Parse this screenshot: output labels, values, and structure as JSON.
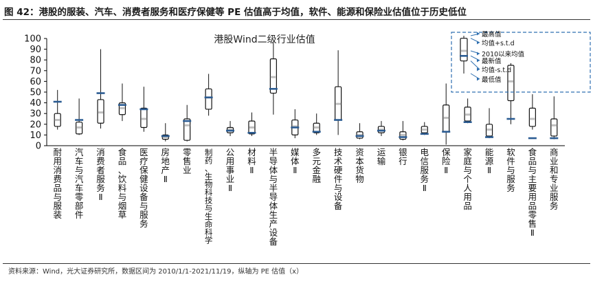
{
  "figure_title": "图 42：港股的服装、汽车、消费者服务和医疗保健等 PE 估值高于均值，软件、能源和保险业估值位于历史低位",
  "source_note": "资料来源：Wind，光大证券研究所，数据区间为 2010/1/1-2021/11/19，纵轴为 PE 估值（x）",
  "colors": {
    "box_fill": "#ffffff",
    "box_stroke": "#111111",
    "whisker": "#111111",
    "mean_marker": "#bfbfbf",
    "latest_marker": "#2a5b92",
    "legend_border": "#2e6fb0",
    "legend_arrow": "#2e6fb0",
    "median_line": "#2a5b92"
  },
  "chart_data": {
    "type": "boxplot",
    "title": "港股Wind二级行业估值",
    "ylim": [
      0,
      100
    ],
    "yticks": [
      0,
      10,
      20,
      30,
      40,
      50,
      60,
      70,
      80,
      90,
      100
    ],
    "grid": false,
    "legend_position": "top-right",
    "legend": {
      "max": "最高值",
      "mean_plus_std": "均值+s.t.d",
      "mean": "2010以来均值",
      "latest": "最新值",
      "mean_minus_std": "均值-s.t.d",
      "min": "最低值"
    },
    "categories": [
      "耐用消费品与服装",
      "汽车与汽车零部件",
      "消费者服务Ⅱ",
      "食品、饮料与烟草",
      "医疗保健设备与服务",
      "房地产Ⅱ",
      "零售业",
      "制药、生物科技与生命科学",
      "公用事业Ⅱ",
      "材料Ⅱ",
      "半导体与半导体生产设备",
      "媒体Ⅱ",
      "多元金融",
      "技术硬件与设备",
      "资本货物",
      "运输",
      "银行",
      "电信服务Ⅱ",
      "保险Ⅱ",
      "家庭与个人用品",
      "能源Ⅱ",
      "软件与服务",
      "食品与主要用品零售Ⅱ",
      "商业和专业服务"
    ],
    "series": [
      {
        "name": "最高值",
        "values": [
          52,
          44,
          90,
          58,
          55,
          21,
          38,
          67,
          23,
          31,
          96,
          34,
          30,
          89,
          21,
          23,
          23,
          22,
          58,
          44,
          35,
          77,
          48,
          46
        ]
      },
      {
        "name": "均值+s.t.d",
        "values": [
          30,
          22,
          43,
          40,
          35,
          10,
          25,
          53,
          17,
          23,
          81,
          24,
          21,
          55,
          13,
          18,
          13,
          18,
          38,
          36,
          20,
          75,
          35,
          25
        ]
      },
      {
        "name": "2010以来均值",
        "values": [
          24,
          17,
          31,
          35,
          25,
          8,
          19,
          45,
          15,
          17,
          64,
          18,
          17,
          39,
          10,
          15,
          10,
          15,
          26,
          29,
          15,
          60,
          25,
          19
        ]
      },
      {
        "name": "均值-s.t.d",
        "values": [
          18,
          11,
          21,
          29,
          17,
          6,
          5,
          34,
          12,
          11,
          49,
          10,
          12,
          24,
          7,
          12,
          6,
          12,
          13,
          23,
          9,
          42,
          18,
          9
        ]
      },
      {
        "name": "最低值",
        "values": [
          15,
          10,
          16,
          23,
          13,
          4,
          4,
          28,
          9,
          9,
          29,
          7,
          10,
          10,
          6,
          9,
          5,
          10,
          1,
          21,
          7,
          20,
          15,
          6
        ]
      },
      {
        "name": "最新值",
        "values": [
          41,
          24,
          49,
          38,
          34,
          9,
          23,
          45,
          14,
          12,
          53,
          17,
          13,
          24,
          9,
          14,
          8,
          11,
          13,
          22,
          8,
          25,
          7,
          7
        ]
      }
    ],
    "legend_example": {
      "max": 92,
      "upper": 90,
      "mean": 80,
      "latest": 76,
      "lower": 72,
      "min": 62
    }
  }
}
